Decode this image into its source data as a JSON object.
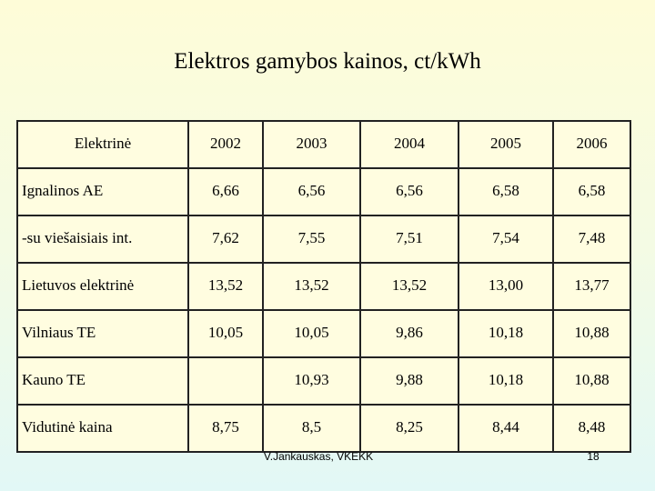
{
  "title": "Elektros gamybos kainos, ct/kWh",
  "table": {
    "header": [
      "Elektrinė",
      "2002",
      "2003",
      "2004",
      "2005",
      "2006"
    ],
    "rows": [
      [
        "Ignalinos AE",
        "6,66",
        "6,56",
        "6,56",
        "6,58",
        "6,58"
      ],
      [
        "-su viešaisiais int.",
        "7,62",
        "7,55",
        "7,51",
        "7,54",
        "7,48"
      ],
      [
        "Lietuvos elektrinė",
        "13,52",
        "13,52",
        "13,52",
        "13,00",
        "13,77"
      ],
      [
        "Vilniaus TE",
        "10,05",
        "10,05",
        "9,86",
        "10,18",
        "10,88"
      ],
      [
        "Kauno TE",
        null,
        "10,93",
        "9,88",
        "10,18",
        "10,88"
      ],
      [
        "Vidutinė kaina",
        "8,75",
        "8,5",
        "8,25",
        "8,44",
        "8,48"
      ]
    ]
  },
  "footer": {
    "author": "V.Jankauskas, VKEKK",
    "page": "18"
  }
}
